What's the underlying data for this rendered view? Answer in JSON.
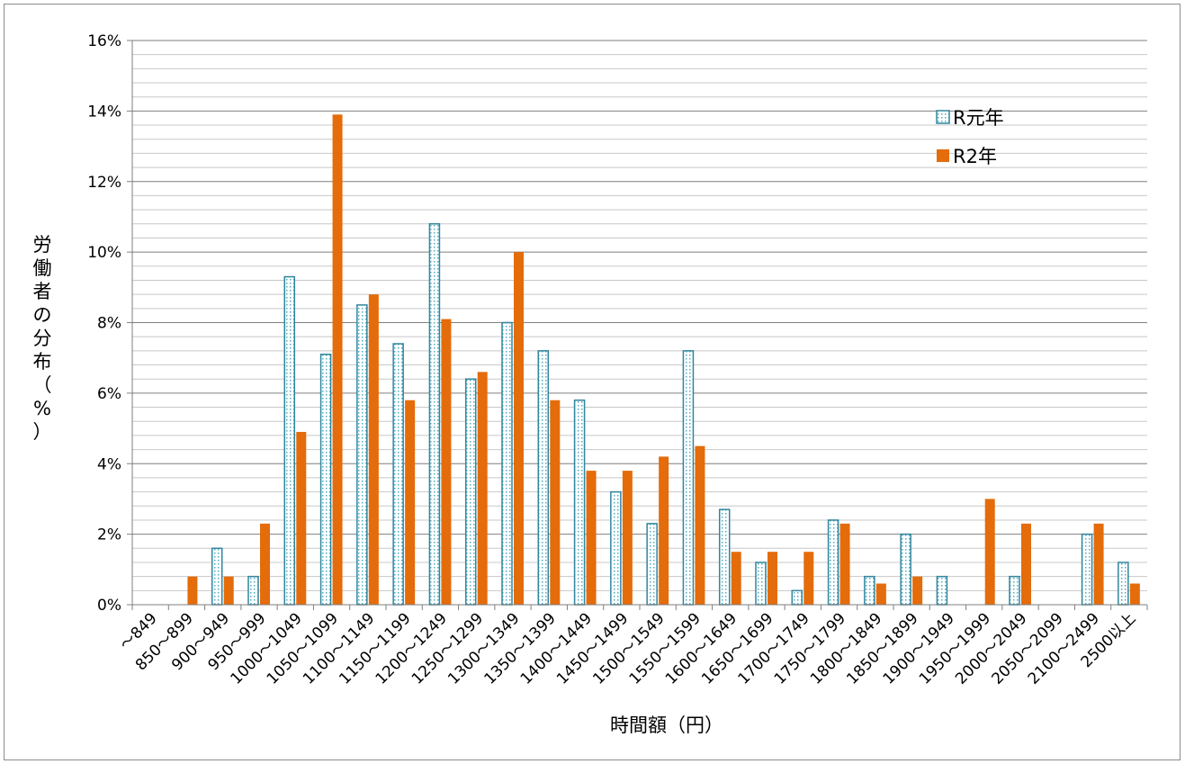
{
  "chart_data": {
    "type": "bar",
    "title": "",
    "xlabel": "時間額（円）",
    "ylabel": "労働者の分布（%）",
    "ylim": [
      0,
      16
    ],
    "y_major_step": 2,
    "y_minor_step": 0.4,
    "y_tick_format": "percent",
    "grid": true,
    "legend_position": "top-right",
    "categories": [
      "～849",
      "850～899",
      "900～949",
      "950～999",
      "1000～1049",
      "1050～1099",
      "1100～1149",
      "1150～1199",
      "1200～1249",
      "1250～1299",
      "1300～1349",
      "1350～1399",
      "1400～1449",
      "1450～1499",
      "1500～1549",
      "1550～1599",
      "1600～1649",
      "1650～1699",
      "1700～1749",
      "1750～1799",
      "1800～1849",
      "1850～1899",
      "1900～1949",
      "1950～1999",
      "2000～2049",
      "2050～2099",
      "2100～2499",
      "2500以上"
    ],
    "series": [
      {
        "name": "R元年",
        "color": "#31859c",
        "pattern": "dotted",
        "values": [
          0,
          0,
          1.6,
          0.8,
          9.3,
          7.1,
          8.5,
          7.4,
          10.8,
          6.4,
          8.0,
          7.2,
          5.8,
          3.2,
          2.3,
          7.2,
          2.7,
          1.2,
          0.4,
          2.4,
          0.8,
          2.0,
          0.8,
          0,
          0.8,
          0,
          2.0,
          1.2
        ]
      },
      {
        "name": "R2年",
        "color": "#e46c0a",
        "pattern": "solid",
        "values": [
          0,
          0.8,
          0.8,
          2.3,
          4.9,
          13.9,
          8.8,
          5.8,
          8.1,
          6.6,
          10.0,
          5.8,
          3.8,
          3.8,
          4.2,
          4.5,
          1.5,
          1.5,
          1.5,
          2.3,
          0.6,
          0.8,
          0,
          3.0,
          2.3,
          0,
          2.3,
          0.6
        ]
      }
    ]
  }
}
